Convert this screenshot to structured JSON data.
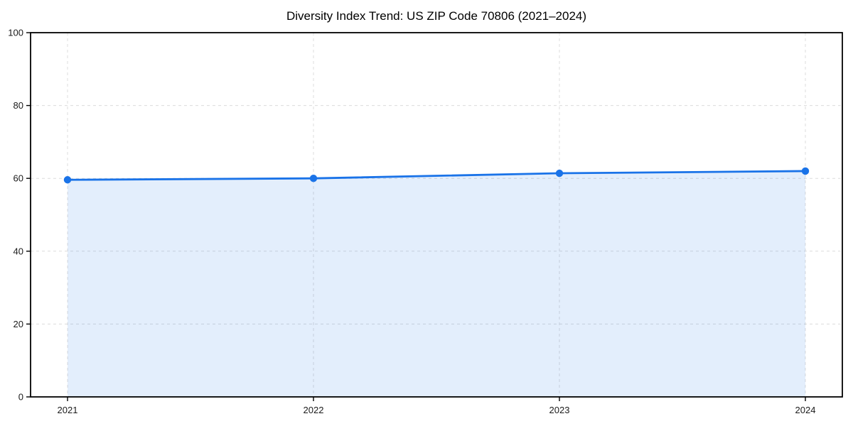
{
  "figure": {
    "background": "#ffffff"
  },
  "chart_data": {
    "type": "area",
    "title": "Diversity Index Trend: US ZIP Code 70806 (2021–2024)",
    "categories": [
      "2021",
      "2022",
      "2023",
      "2024"
    ],
    "series": [
      {
        "name": "Diversity Index",
        "values": [
          59.6,
          60.0,
          61.4,
          62.0
        ]
      }
    ],
    "xlabel": "",
    "ylabel": "",
    "ylim": [
      0,
      100
    ],
    "yticks": [
      0,
      20,
      40,
      60,
      80,
      100
    ],
    "grid": true,
    "grid_style": "dashed",
    "legend": "none",
    "colors": {
      "line": "#1a73e8",
      "marker": "#1a73e8",
      "fill": "#1a73e8",
      "fill_opacity": 0.12,
      "grid": "#dcdcdc",
      "axis": "#000000",
      "tick_label": "#1a1a1a",
      "title": "#000000"
    }
  }
}
